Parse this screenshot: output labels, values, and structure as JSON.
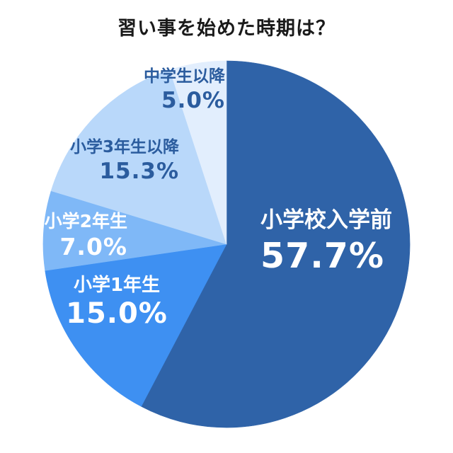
{
  "title": "習い事を始めた時期は？",
  "colors": {
    "background": "#ffffff",
    "title_text": "#1a1a1a",
    "dark_label_text": "#2b5c9e",
    "light_label_text": "#ffffff"
  },
  "chart_data": {
    "type": "pie",
    "title": "習い事を始めた時期は？",
    "direction": "clockwise",
    "start_angle_deg": 0,
    "legend_position": "none",
    "total": 100.0,
    "slices": [
      {
        "label": "小学校入学前",
        "value": 57.7,
        "display": "57.7%",
        "color": "#2f63a8",
        "text_color": "#ffffff"
      },
      {
        "label": "小学1年生",
        "value": 15.0,
        "display": "15.0%",
        "color": "#3e90f2",
        "text_color": "#ffffff"
      },
      {
        "label": "小学2年生",
        "value": 7.0,
        "display": "7.0%",
        "color": "#7fb8f7",
        "text_color": "#ffffff"
      },
      {
        "label": "小学3年生以降",
        "value": 15.3,
        "display": "15.3%",
        "color": "#b9d8fa",
        "text_color": "#2b5c9e"
      },
      {
        "label": "中学生以降",
        "value": 5.0,
        "display": "5.0%",
        "color": "#e2eefd",
        "text_color": "#2b5c9e"
      }
    ]
  }
}
